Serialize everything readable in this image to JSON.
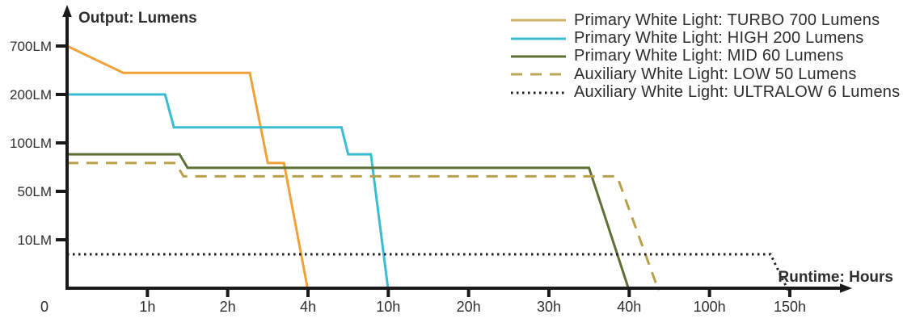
{
  "page": {
    "background": "#ffffff",
    "text_color": "#2e2e2e",
    "axis_color": "#1a1a1a"
  },
  "chart_data": {
    "type": "line",
    "x_axis": {
      "label": "Runtime: Hours",
      "unit": "hours",
      "tick_values": [
        0,
        1,
        2,
        4,
        10,
        20,
        30,
        40,
        100,
        150
      ],
      "tick_labels": [
        "0",
        "1h",
        "2h",
        "4h",
        "10h",
        "20h",
        "30h",
        "40h",
        "100h",
        "150h"
      ],
      "scale": "piecewise-linear-between-ticks"
    },
    "y_axis": {
      "label": "Output: Lumens",
      "unit": "lumens",
      "tick_values": [
        0,
        10,
        50,
        100,
        200,
        700
      ],
      "tick_labels": [
        "",
        "10LM",
        "50LM",
        "100LM",
        "200LM",
        "700LM"
      ],
      "scale": "piecewise-log-between-ticks"
    },
    "series": [
      {
        "name": "Primary White Light: TURBO 700 Lumens",
        "color": "#F0A138",
        "style": "solid",
        "points": [
          [
            0,
            700
          ],
          [
            0.7,
            350
          ],
          [
            2.55,
            350
          ],
          [
            3.0,
            75
          ],
          [
            3.4,
            75
          ],
          [
            4,
            0
          ]
        ]
      },
      {
        "name": "Primary White Light: HIGH 200 Lumens",
        "color": "#3BBDD1",
        "style": "solid",
        "points": [
          [
            0,
            200
          ],
          [
            1.22,
            200
          ],
          [
            1.33,
            125
          ],
          [
            6.5,
            125
          ],
          [
            7.0,
            85
          ],
          [
            8.7,
            85
          ],
          [
            10,
            0
          ]
        ]
      },
      {
        "name": "Primary White Light: MID 60 Lumens",
        "color": "#5F7037",
        "style": "solid",
        "points": [
          [
            0,
            85
          ],
          [
            1.4,
            85
          ],
          [
            1.5,
            70
          ],
          [
            35,
            70
          ],
          [
            40,
            0
          ]
        ]
      },
      {
        "name": "Auxiliary White Light: LOW 50 Lumens",
        "color": "#B9A149",
        "style": "dashed",
        "points": [
          [
            0,
            75
          ],
          [
            1.35,
            75
          ],
          [
            1.45,
            62
          ],
          [
            38.5,
            62
          ],
          [
            62,
            0
          ]
        ]
      },
      {
        "name": "Auxiliary White Light: ULTRALOW 6 Lumens",
        "color": "#1E1E1E",
        "style": "dotted",
        "points": [
          [
            0,
            7
          ],
          [
            138,
            7
          ],
          [
            149,
            0
          ]
        ]
      }
    ],
    "legend": {
      "position": "top-right",
      "items": [
        {
          "label": "Primary White Light: TURBO 700 Lumens",
          "color": "#D5B266",
          "style": "solid"
        },
        {
          "label": "Primary White Light: HIGH 200 Lumens",
          "color": "#3BBDD1",
          "style": "solid"
        },
        {
          "label": "Primary White Light: MID 60 Lumens",
          "color": "#5F7037",
          "style": "solid"
        },
        {
          "label": "Auxiliary White Light: LOW 50 Lumens",
          "color": "#BCA854",
          "style": "dashed"
        },
        {
          "label": "Auxiliary White Light: ULTRALOW 6 Lumens",
          "color": "#1E1E1E",
          "style": "dotted"
        }
      ]
    }
  }
}
